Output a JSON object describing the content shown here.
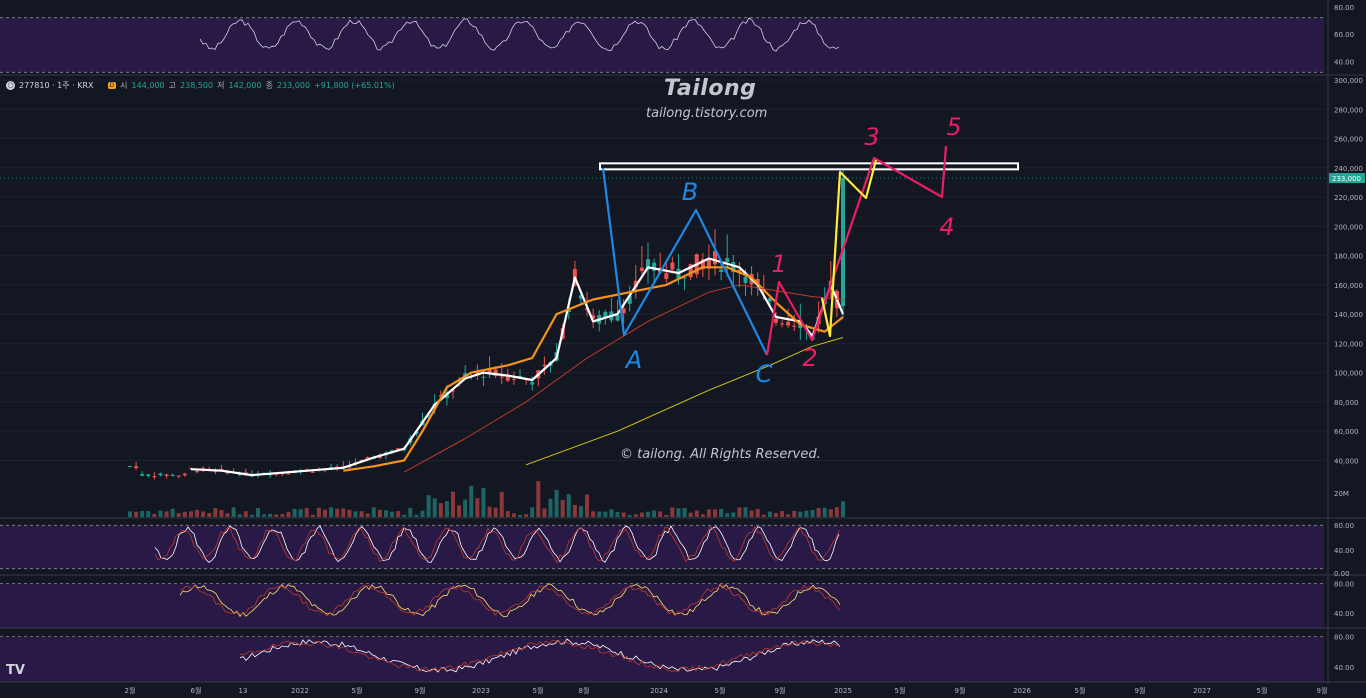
{
  "header": {
    "symbol": "277810 · 1주 · KRX",
    "badge": "D",
    "open_label": "시",
    "open": "144,000",
    "high_label": "고",
    "high": "238,500",
    "low_label": "저",
    "low": "142,000",
    "close_label": "종",
    "close": "233,000",
    "change": "+91,800 (+65.01%)"
  },
  "watermark": {
    "title": "Tailong",
    "subtitle": "tailong.tistory.com",
    "copyright": "© tailong. All Rights Reserved."
  },
  "logo": "TV",
  "colors": {
    "background": "#131722",
    "panel_purple": "#2b1a4a",
    "white_ma": "#ffffff",
    "orange_ma": "#f7931a",
    "red_ma": "#c0392b",
    "yellow_ma": "#d4c417",
    "up": "#26a69a",
    "down": "#ef5350",
    "cyan_wave": "#1e88e5",
    "pink_wave": "#e91e63",
    "yellow_wave": "#ffeb3b"
  },
  "chart_data": [
    {
      "type": "candlestick",
      "panel": "price",
      "yaxis_ticks": [
        "300,000",
        "280,000",
        "260,000",
        "240,000",
        "220,000",
        "200,000",
        "180,000",
        "160,000",
        "140,000",
        "120,000",
        "100,000",
        "80,000",
        "60,000",
        "40,000"
      ],
      "ylim": [
        28000,
        300000
      ],
      "x_ticks": [
        "2월",
        "6월",
        "13",
        "2022",
        "5월",
        "9월",
        "2023",
        "5월",
        "8월",
        "2024",
        "5월",
        "9월",
        "2025",
        "5월",
        "9월",
        "2026",
        "5월",
        "9월",
        "2027",
        "5월",
        "9월"
      ],
      "last_price_label": "233,000",
      "resistance_level": 241000,
      "moving_averages": [
        {
          "color": "white",
          "points": [
            [
              10,
              34000
            ],
            [
              15,
              33000
            ],
            [
              20,
              30000
            ],
            [
              35,
              35000
            ],
            [
              40,
              42000
            ],
            [
              45,
              48000
            ],
            [
              50,
              78000
            ],
            [
              55,
              96000
            ],
            [
              58,
              100000
            ],
            [
              62,
              98000
            ],
            [
              66,
              95000
            ],
            [
              70,
              110000
            ],
            [
              73,
              165000
            ],
            [
              76,
              135000
            ],
            [
              80,
              140000
            ],
            [
              85,
              172000
            ],
            [
              90,
              168000
            ],
            [
              95,
              178000
            ],
            [
              100,
              172000
            ],
            [
              103,
              160000
            ],
            [
              106,
              138000
            ],
            [
              110,
              135000
            ],
            [
              112,
              125000
            ],
            [
              115,
              160000
            ],
            [
              117,
              140000
            ]
          ]
        },
        {
          "color": "orange",
          "points": [
            [
              35,
              33000
            ],
            [
              40,
              36000
            ],
            [
              45,
              40000
            ],
            [
              48,
              60000
            ],
            [
              52,
              90000
            ],
            [
              56,
              100000
            ],
            [
              62,
              105000
            ],
            [
              66,
              110000
            ],
            [
              70,
              140000
            ],
            [
              76,
              150000
            ],
            [
              82,
              155000
            ],
            [
              88,
              160000
            ],
            [
              94,
              172000
            ],
            [
              98,
              172000
            ],
            [
              102,
              165000
            ],
            [
              106,
              148000
            ],
            [
              110,
              133000
            ],
            [
              114,
              128000
            ],
            [
              117,
              138000
            ]
          ]
        },
        {
          "color": "red",
          "points": [
            [
              45,
              32000
            ],
            [
              55,
              55000
            ],
            [
              65,
              80000
            ],
            [
              75,
              110000
            ],
            [
              85,
              135000
            ],
            [
              95,
              155000
            ],
            [
              100,
              160000
            ],
            [
              106,
              156000
            ],
            [
              112,
              152000
            ],
            [
              117,
              150000
            ]
          ]
        },
        {
          "color": "yellow",
          "points": [
            [
              65,
              37000
            ],
            [
              80,
              60000
            ],
            [
              95,
              88000
            ],
            [
              105,
              105000
            ],
            [
              112,
              118000
            ],
            [
              117,
              124000
            ]
          ]
        }
      ],
      "elliott_annotations": [
        "A",
        "B",
        "C",
        "1",
        "2",
        "3",
        "4",
        "5"
      ]
    },
    {
      "type": "line",
      "panel": "rsi_top",
      "yaxis_ticks": [
        "80.00",
        "60.00",
        "40.00"
      ],
      "ylim": [
        30,
        85
      ]
    },
    {
      "type": "bar",
      "panel": "volume",
      "yaxis_ticks": [
        "20M"
      ]
    },
    {
      "type": "line",
      "panel": "osc1",
      "yaxis_ticks": [
        "80.00",
        "40.00",
        "0.00"
      ],
      "ylim": [
        0,
        90
      ]
    },
    {
      "type": "line",
      "panel": "osc2",
      "yaxis_ticks": [
        "80.00",
        "40.00"
      ],
      "ylim": [
        20,
        90
      ]
    },
    {
      "type": "line",
      "panel": "osc3",
      "yaxis_ticks": [
        "80.00",
        "40.00"
      ],
      "ylim": [
        20,
        90
      ]
    }
  ]
}
